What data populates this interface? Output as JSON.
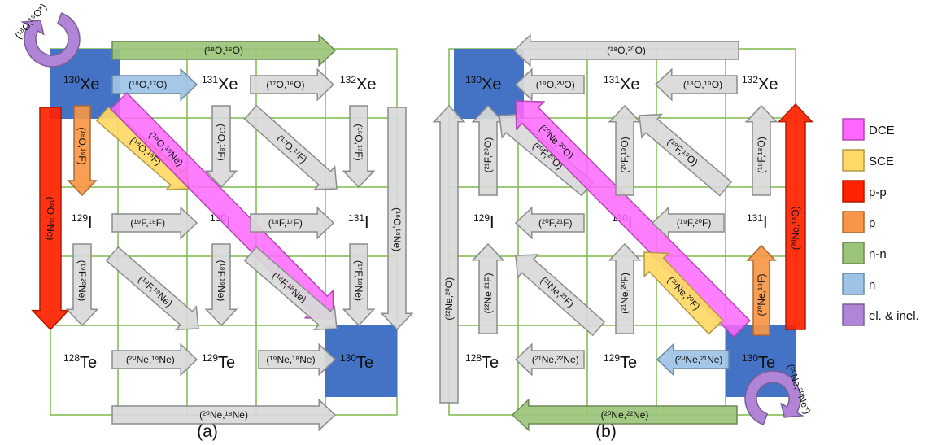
{
  "colors": {
    "grid": "#7fba4a",
    "target": "#4472c4",
    "gray_fill": "#d9d9d9",
    "gray_stroke": "#8c8c8c",
    "DCE": "#ff66ff",
    "SCE": "#ffd966",
    "pp": "#ff2200",
    "p": "#f79646",
    "nn": "#9bc47a",
    "n": "#9dc3e6",
    "el": "#b085d8"
  },
  "panel_a": {
    "label": "(a)",
    "nuclei": {
      "xe130": {
        "mass": "130",
        "sym": "Xe"
      },
      "xe131": {
        "mass": "131",
        "sym": "Xe"
      },
      "xe132": {
        "mass": "132",
        "sym": "Xe"
      },
      "i129": {
        "mass": "129",
        "sym": "I"
      },
      "i130": {
        "mass": "130",
        "sym": "I"
      },
      "i131": {
        "mass": "131",
        "sym": "I"
      },
      "te128": {
        "mass": "128",
        "sym": "Te"
      },
      "te129": {
        "mass": "129",
        "sym": "Te"
      },
      "te130": {
        "mass": "130",
        "sym": "Te"
      }
    },
    "reactions": {
      "el": "(¹⁸O,¹⁸O*)",
      "top_nn": "(¹⁸O,¹⁶O)",
      "xe_n": "(¹⁸O,¹⁷O)",
      "xe131_132": "(¹⁷O,¹⁶O)",
      "pp_left": "(¹⁸O,²⁰Ne)",
      "p_xe": "(¹⁸O,¹⁹F)",
      "sce": "(¹⁸O,¹⁸F)",
      "dce": "(¹⁸O,¹⁸Ne)",
      "x131_down": "(¹⁷O,¹⁸F)",
      "diag_131": "(¹⁷O,¹⁷F)",
      "x132_down": "(¹⁶O,¹⁷F)",
      "right_pp": "(¹⁶O,¹⁸Ne)",
      "i129_i130": "(¹⁹F,¹⁸F)",
      "i130_i131": "(¹⁸F,¹⁷F)",
      "i129_down": "(¹⁹F,²⁰Ne)",
      "diag_129": "(¹⁹F,¹⁹Ne)",
      "i130_down": "(¹⁸F,¹⁹Ne)",
      "diag_130": "(¹⁸F,¹⁸Ne)",
      "i131_down": "(¹⁷F,¹⁸Ne)",
      "te128_129": "(²⁰Ne,¹⁹Ne)",
      "te129_130": "(¹⁹Ne,¹⁸Ne)",
      "bottom_nn": "(²⁰Ne,¹⁸Ne)"
    }
  },
  "panel_b": {
    "label": "(b)",
    "reactions": {
      "top_nn": "(¹⁸O,²⁰O)",
      "xe_n": "(¹⁹O,²⁰O)",
      "xe131_132": "(¹⁸O,¹⁹O)",
      "left_pp": "(²²Ne,²⁰O)",
      "i129_up": "(²¹F,²⁰O)",
      "diag_sce": "(²⁰F,²⁰O)",
      "dce": "(²⁰Ne,²⁰O)",
      "i130_up": "(²⁰F,¹⁹O)",
      "diag_131": "(¹⁹F,¹⁹O)",
      "i131_up": "(¹⁹F,¹⁸O)",
      "right_pp": "(²⁰Ne,¹⁸O)",
      "i129_130": "(²⁰F,²¹F)",
      "i130_131": "(¹⁹F,²⁰F)",
      "te128_up": "(²²Ne,²¹F)",
      "diag_te": "(²¹Ne,²¹F)",
      "te129_up": "(²¹Ne,²⁰F)",
      "sce": "(²⁰Ne,²⁰F)",
      "p": "(²⁰Ne,¹⁹F)",
      "te128_129": "(²¹Ne,²²Ne)",
      "te129_130": "(²⁰Ne,²¹Ne)",
      "bottom_nn": "(²⁰Ne,²²Ne)",
      "el": "(²⁰Ne,²⁰Ne*)"
    }
  },
  "legend": [
    {
      "label": "DCE",
      "color_key": "DCE"
    },
    {
      "label": "SCE",
      "color_key": "SCE"
    },
    {
      "label": "p-p",
      "color_key": "pp"
    },
    {
      "label": "p",
      "color_key": "p"
    },
    {
      "label": "n-n",
      "color_key": "nn"
    },
    {
      "label": "n",
      "color_key": "n"
    },
    {
      "label": "el. & inel.",
      "color_key": "el"
    }
  ]
}
